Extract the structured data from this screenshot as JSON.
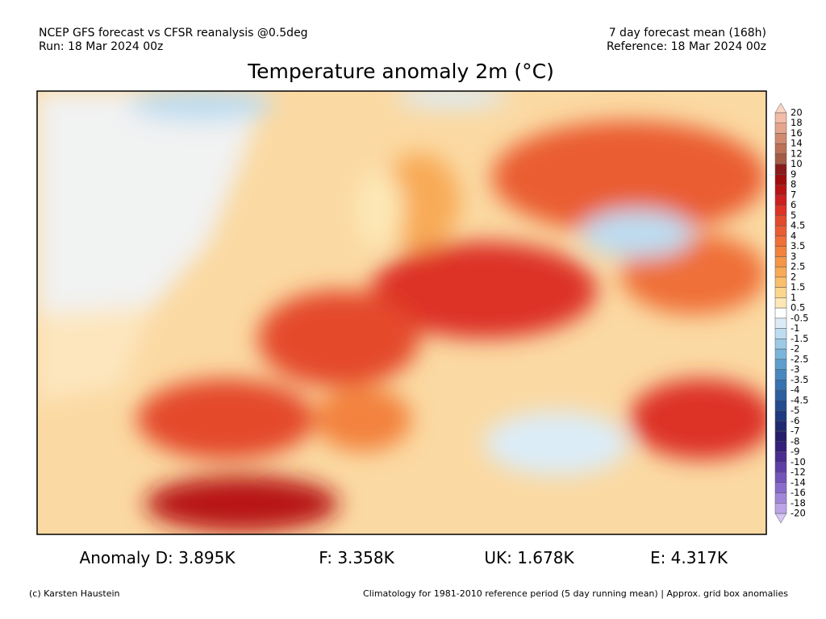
{
  "header": {
    "left_line1": "NCEP GFS forecast vs CFSR reanalysis @0.5deg",
    "left_line2": "Run: 18 Mar 2024 00z",
    "right_line1": "7 day forecast mean (168h)",
    "right_line2": "Reference: 18 Mar 2024 00z"
  },
  "title": "Temperature anomaly 2m (°C)",
  "colorbar": {
    "labels": [
      20,
      18,
      16,
      14,
      12,
      10,
      9,
      8,
      7,
      6,
      5,
      4.5,
      4,
      3.5,
      3,
      2.5,
      2,
      1.5,
      1,
      0.5,
      -0.5,
      -1,
      -1.5,
      -2,
      -2.5,
      -3,
      -3.5,
      -4,
      -4.5,
      -5,
      -6,
      -7,
      -8,
      -9,
      -10,
      -12,
      -14,
      -16,
      -18,
      -20
    ],
    "over_color": "#fbd5c4",
    "under_color": "#d6c6f2",
    "colors": [
      "#f2bca8",
      "#e4a58c",
      "#d08a6e",
      "#bb7257",
      "#a45c45",
      "#8b1a1a",
      "#a00d0d",
      "#b81414",
      "#cc2020",
      "#dd3326",
      "#e44a2c",
      "#ea5d33",
      "#ef7038",
      "#f3823e",
      "#f69648",
      "#f8aa56",
      "#fabf6c",
      "#fcd68c",
      "#fde8b6",
      "#ffffff",
      "#dcecf7",
      "#bddcf0",
      "#9bc9e6",
      "#7ab4da",
      "#5d9ecd",
      "#4888bf",
      "#3872b0",
      "#2c5ea0",
      "#224b90",
      "#1f3a80",
      "#1f2a70",
      "#261e6a",
      "#35207a",
      "#4a2d90",
      "#5f3ea6",
      "#7453bb",
      "#8a6bcc",
      "#a286da",
      "#bca4e6"
    ]
  },
  "stats": [
    "Anomaly D: 3.895K",
    "F: 3.358K",
    "UK: 1.678K",
    "E: 4.317K"
  ],
  "footer": {
    "left": "(c) Karsten Haustein",
    "right": "Climatology for 1981-2010 reference period (5 day running mean) | Approx. grid box anomalies"
  }
}
